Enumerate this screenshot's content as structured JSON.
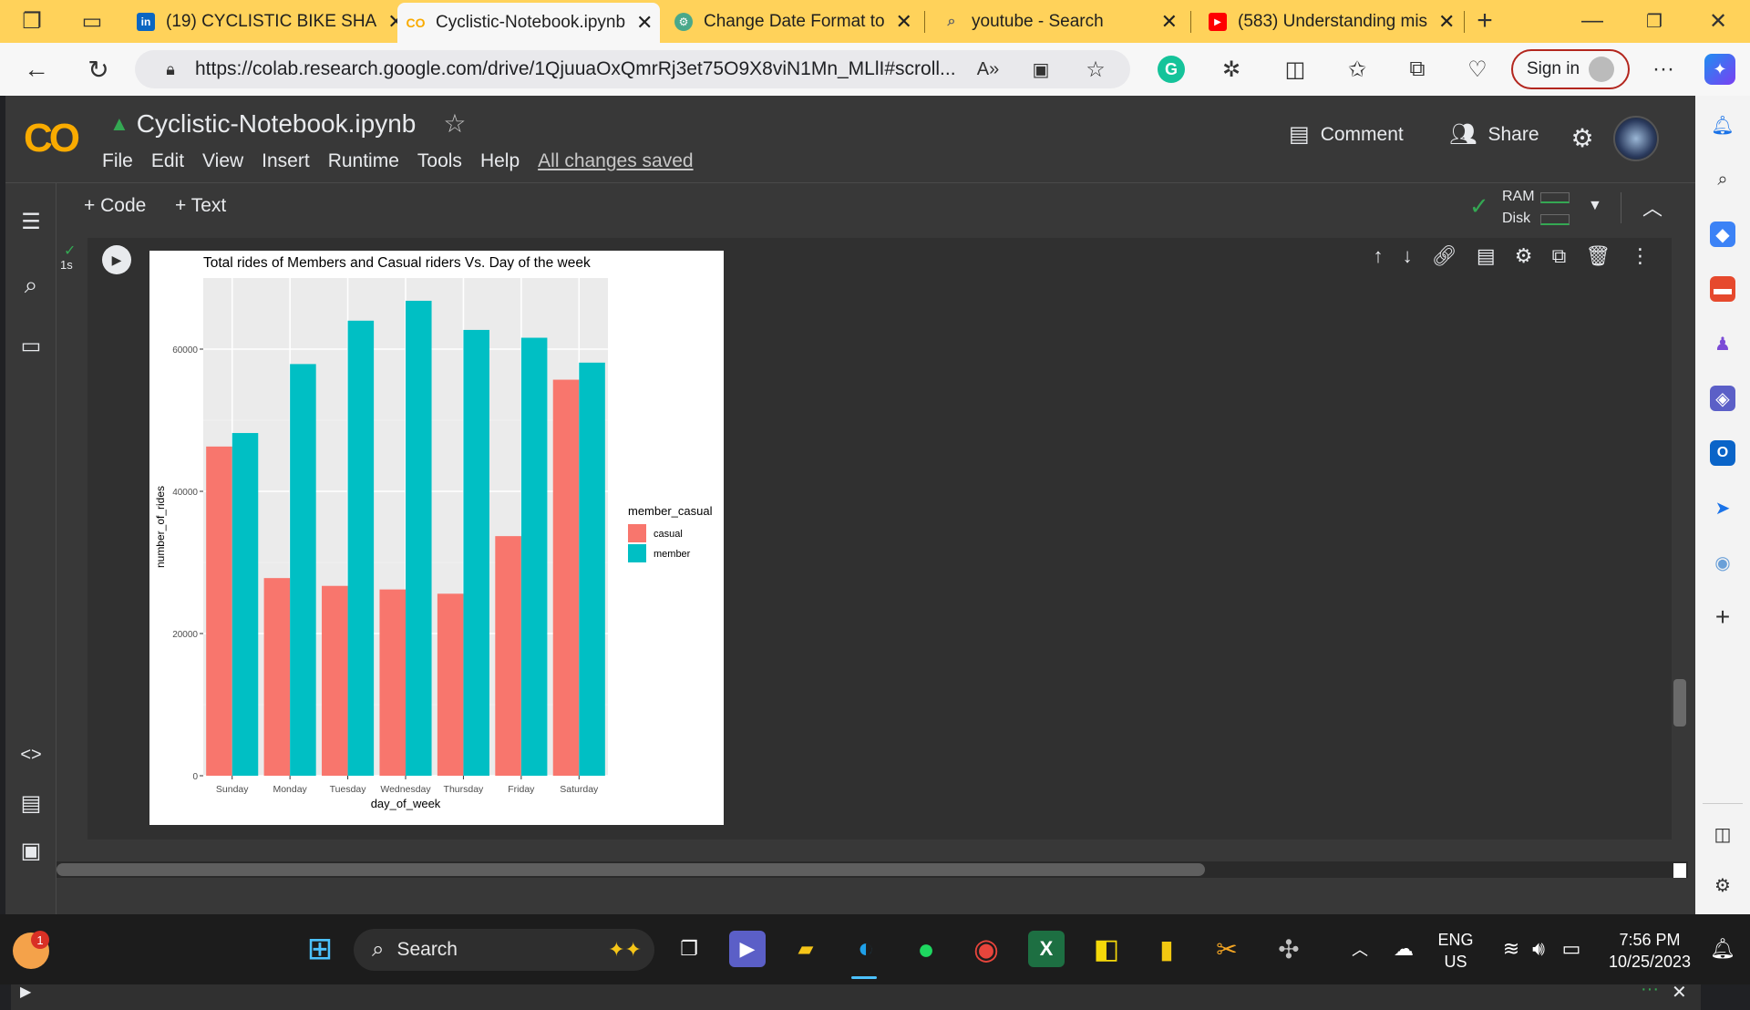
{
  "browser": {
    "tabs": [
      {
        "title": "(19) CYCLISTIC BIKE SHA",
        "favicon": "linkedin-icon",
        "active": false
      },
      {
        "title": "Cyclistic-Notebook.ipynb",
        "favicon": "colab-icon",
        "active": true
      },
      {
        "title": "Change Date Format to",
        "favicon": "openai-icon",
        "active": false
      },
      {
        "title": "youtube - Search",
        "favicon": "search-icon",
        "active": false
      },
      {
        "title": "(583) Understanding mis",
        "favicon": "youtube-icon",
        "active": false
      }
    ],
    "url": "https://colab.research.google.com/drive/1QjuuaOxQmrRj3et75O9X8viN1Mn_MLlI#scroll...",
    "sign_in": "Sign in"
  },
  "colab": {
    "logo": "CO",
    "title": "Cyclistic-Notebook.ipynb",
    "menus": [
      "File",
      "Edit",
      "View",
      "Insert",
      "Runtime",
      "Tools",
      "Help"
    ],
    "save_status": "All changes saved",
    "comment": "Comment",
    "share": "Share",
    "add_code": "+ Code",
    "add_text": "+ Text",
    "ram": "RAM",
    "disk": "Disk",
    "cell_exec_time": "1s"
  },
  "chart_data": {
    "type": "bar",
    "title": "Total rides of Members and Casual riders Vs. Day of the week",
    "xlabel": "day_of_week",
    "ylabel": "number_of_rides",
    "categories": [
      "Sunday",
      "Monday",
      "Tuesday",
      "Wednesday",
      "Thursday",
      "Friday",
      "Saturday"
    ],
    "series": [
      {
        "name": "casual",
        "values": [
          46300,
          27800,
          26700,
          26200,
          25600,
          33700,
          55700
        ],
        "color": "#f8766d"
      },
      {
        "name": "member",
        "values": [
          48200,
          57900,
          64000,
          66800,
          62700,
          61600,
          58100
        ],
        "color": "#00bfc4"
      }
    ],
    "yticks": [
      "0",
      "20000",
      "40000",
      "60000"
    ],
    "ylim": [
      0,
      70000
    ],
    "legend_title": "member_casual",
    "legend_position": "right",
    "grid": true
  },
  "taskbar": {
    "search": "Search",
    "lang": "ENG",
    "region": "US",
    "time": "7:56 PM",
    "date": "10/25/2023",
    "notification_count": "1"
  }
}
